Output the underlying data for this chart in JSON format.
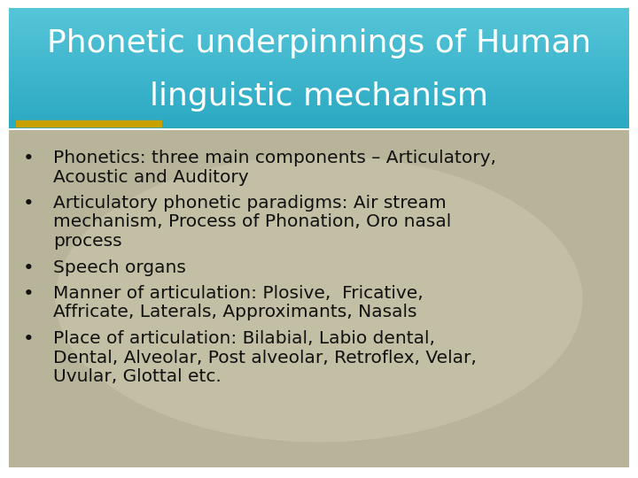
{
  "title_line1": "Phonetic underpinnings of Human",
  "title_line2": "linguistic mechanism",
  "title_bg_color_top": "#55C5D8",
  "title_bg_color_bottom": "#2FA8C0",
  "title_text_color": "#FFFFFF",
  "body_bg_color": "#B8B49A",
  "body_text_color": "#111111",
  "underline_color": "#C8A000",
  "bullet_points": [
    "Phonetics: three main components – Articulatory,\nAcoustic and Auditory",
    "Articulatory phonetic paradigms: Air stream\nmechanism, Process of Phonation, Oro nasal\nprocess",
    "Speech organs",
    "Manner of articulation: Plosive,  Fricative,\nAffricate, Laterals, Approximants, Nasals",
    "Place of articulation: Bilabial, Labio dental,\nDental, Alveolar, Post alveolar, Retroflex, Velar,\nUvular, Glottal etc."
  ],
  "fig_width": 7.2,
  "fig_height": 5.4,
  "dpi": 100,
  "title_font_size": 26,
  "body_font_size": 14.5,
  "outer_bg_color": "#FFFFFF"
}
